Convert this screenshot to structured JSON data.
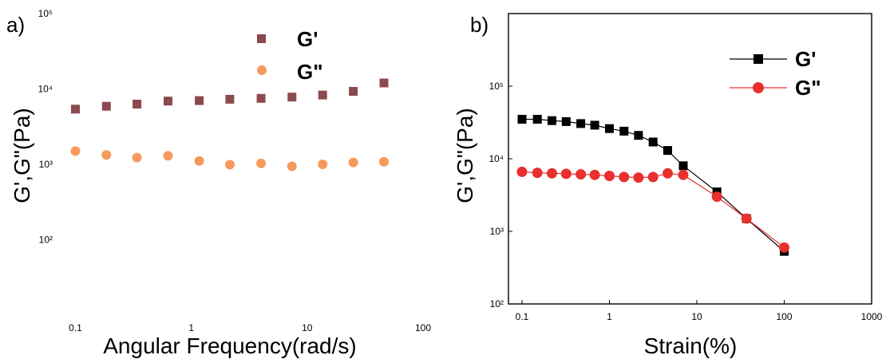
{
  "chart_data": [
    {
      "type": "scatter",
      "panel_label": "a)",
      "xlabel": "Angular Frequency(rad/s)",
      "ylabel": "G',G\"(Pa)",
      "xscale": "log",
      "yscale": "log",
      "xlim": [
        0.07,
        100
      ],
      "ylim": [
        10,
        100000
      ],
      "x_ticks": [
        "0.1",
        "1",
        "10",
        "100"
      ],
      "y_ticks": [
        "10²",
        "10³",
        "10⁴",
        "10⁵"
      ],
      "legend_position": "top-right",
      "series": [
        {
          "name": "G'",
          "marker": "square",
          "line": false,
          "color": "#8b4a4f",
          "x": [
            0.1,
            0.185,
            0.34,
            0.63,
            1.17,
            2.15,
            4.0,
            7.4,
            13.6,
            25,
            46
          ],
          "y": [
            5400,
            5900,
            6300,
            6900,
            7000,
            7300,
            7500,
            7800,
            8300,
            9300,
            12000
          ]
        },
        {
          "name": "G\"",
          "marker": "circle",
          "line": false,
          "color": "#f59a5c",
          "x": [
            0.1,
            0.185,
            0.34,
            0.63,
            1.17,
            2.15,
            4.0,
            7.4,
            13.6,
            25,
            46
          ],
          "y": [
            1500,
            1330,
            1230,
            1300,
            1110,
            990,
            1030,
            940,
            1000,
            1060,
            1080
          ]
        }
      ]
    },
    {
      "type": "line",
      "panel_label": "b)",
      "xlabel": "Strain(%)",
      "ylabel": "G',G\"(Pa)",
      "xscale": "log",
      "yscale": "log",
      "xlim": [
        0.07,
        1000
      ],
      "ylim": [
        100,
        1000000
      ],
      "x_ticks": [
        "0.1",
        "1",
        "10",
        "100",
        "1000"
      ],
      "y_ticks": [
        "10²",
        "10³",
        "10⁴",
        "10⁵"
      ],
      "legend_position": "top-right",
      "series": [
        {
          "name": "G'",
          "marker": "square",
          "line": true,
          "color": "#000000",
          "x": [
            0.1,
            0.15,
            0.22,
            0.32,
            0.47,
            0.68,
            1.0,
            1.47,
            2.15,
            3.16,
            4.64,
            7.0,
            17,
            37,
            100
          ],
          "y": [
            35000,
            35000,
            33500,
            32500,
            30500,
            29000,
            26000,
            24000,
            21000,
            17000,
            13000,
            8000,
            3500,
            1500,
            530
          ]
        },
        {
          "name": "G\"",
          "marker": "circle",
          "line": true,
          "color": "#e8302f",
          "x": [
            0.1,
            0.15,
            0.22,
            0.32,
            0.47,
            0.68,
            1.0,
            1.47,
            2.15,
            3.16,
            4.64,
            7.0,
            17,
            37,
            100
          ],
          "y": [
            6600,
            6400,
            6300,
            6200,
            6100,
            6000,
            5800,
            5600,
            5500,
            5600,
            6300,
            6000,
            3000,
            1500,
            600
          ]
        }
      ]
    }
  ]
}
